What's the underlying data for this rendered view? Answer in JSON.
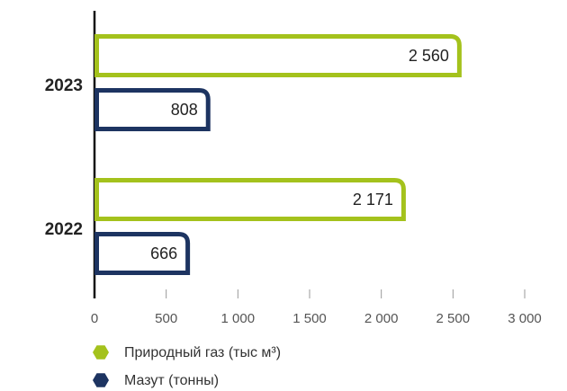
{
  "chart_data": {
    "type": "bar",
    "orientation": "horizontal",
    "categories": [
      "2023",
      "2022"
    ],
    "series": [
      {
        "name": "Природный газ (тыс м³)",
        "color": "#a4c21c",
        "values": [
          2560,
          2171
        ],
        "value_labels": [
          "2 560",
          "2 171"
        ]
      },
      {
        "name": "Мазут (тонны)",
        "color": "#1d3461",
        "values": [
          808,
          666
        ],
        "value_labels": [
          "808",
          "666"
        ]
      }
    ],
    "xlim": [
      0,
      3000
    ],
    "xticks": [
      0,
      500,
      {
        "value": 1000,
        "label": "1 000"
      },
      {
        "value": 1500,
        "label": "1 500"
      },
      {
        "value": 2000,
        "label": "2 000"
      },
      {
        "value": 2500,
        "label": "2 500"
      },
      {
        "value": 3000,
        "label": "3 000"
      }
    ]
  }
}
